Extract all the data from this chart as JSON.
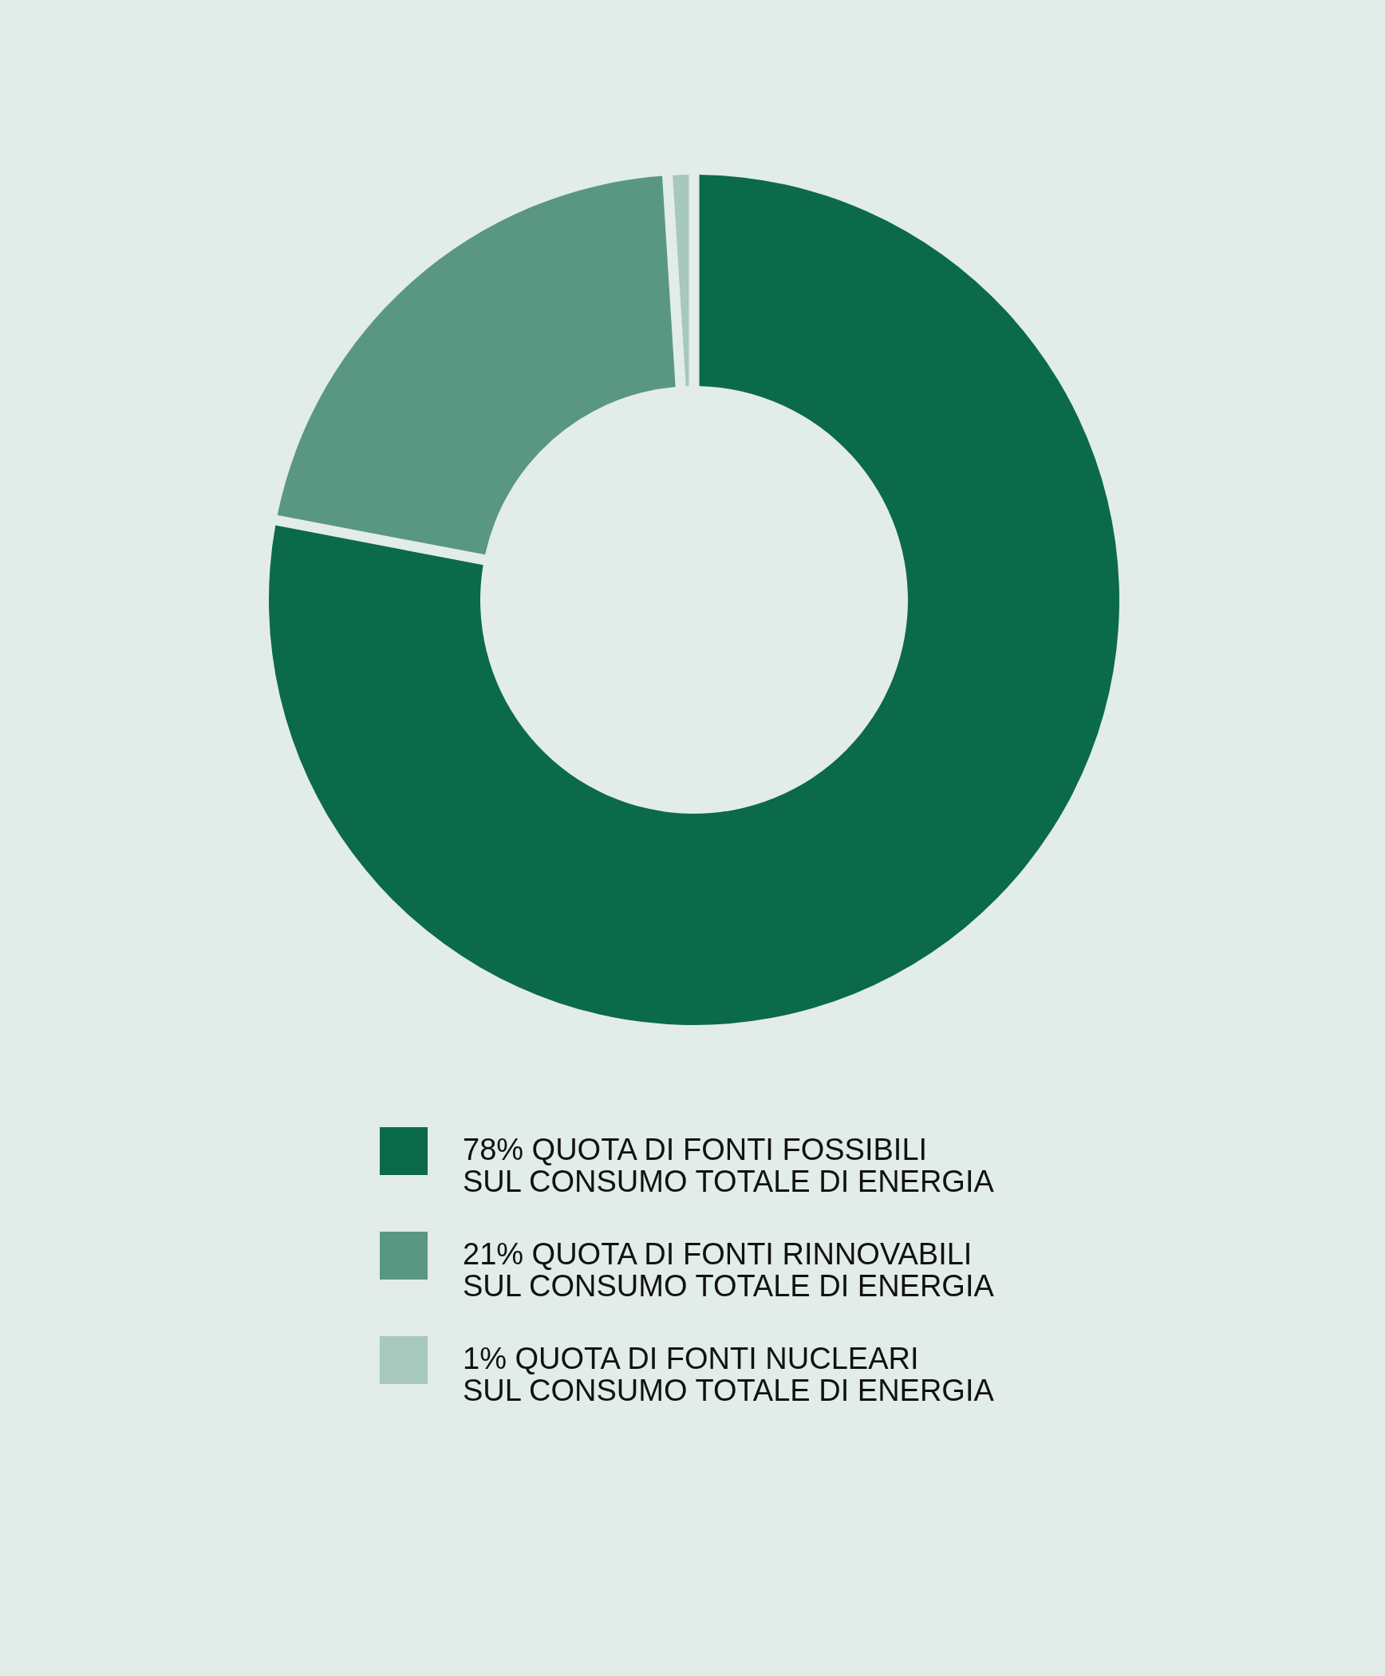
{
  "chart_data": {
    "type": "donut",
    "categories": [
      "QUOTA DI FONTI FOSSIBILI\nSUL CONSUMO TOTALE DI ENERGIA",
      "QUOTA DI FONTI RINNOVABILI\nSUL CONSUMO TOTALE DI ENERGIA",
      "QUOTA DI FONTI NUCLEARI\nSUL CONSUMO TOTALE DI ENERGIA"
    ],
    "values": [
      78,
      21,
      1
    ],
    "value_labels": [
      "78%",
      "21%",
      "1%"
    ],
    "colors": [
      "#0b6a4a",
      "#5a9782",
      "#a6c8bd"
    ],
    "legend": "bottom"
  }
}
